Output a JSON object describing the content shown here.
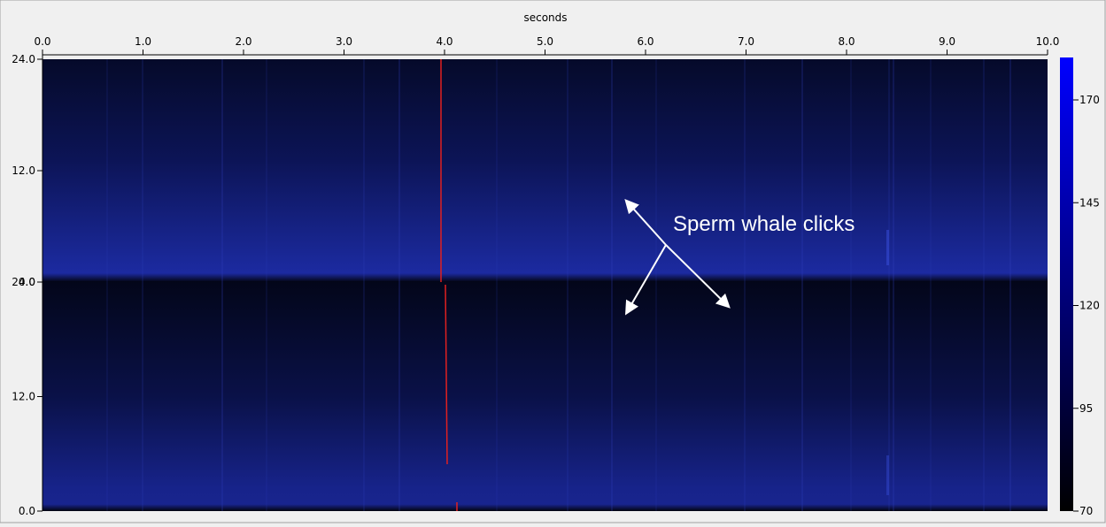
{
  "window": {
    "x_axis_title": "seconds",
    "x_ticks": [
      "0.0",
      "1.0",
      "2.0",
      "3.0",
      "4.0",
      "5.0",
      "6.0",
      "7.0",
      "8.0",
      "9.0",
      "10.0"
    ],
    "channels": [
      {
        "y_ticks": [
          "24.0",
          "12.0",
          "0.0"
        ]
      },
      {
        "y_ticks": [
          "24.0",
          "12.0",
          "0.0"
        ]
      }
    ],
    "colorbar_ticks": [
      "170",
      "145",
      "120",
      "95",
      "70"
    ],
    "annotation": "Sperm whale clicks"
  }
}
